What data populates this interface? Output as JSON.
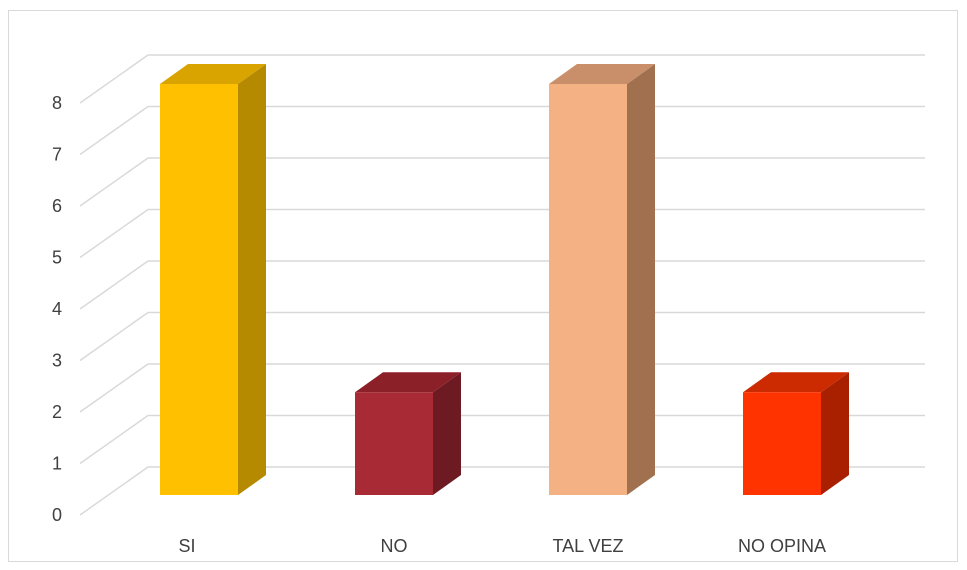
{
  "chart_data": {
    "type": "bar",
    "title": "",
    "xlabel": "",
    "ylabel": "",
    "categories": [
      "SI",
      "NO",
      "TAL VEZ",
      "NO OPINA"
    ],
    "values": [
      8,
      2,
      8,
      2
    ],
    "ylim": [
      0,
      8
    ],
    "yticks": [
      "0",
      "1",
      "2",
      "3",
      "4",
      "5",
      "6",
      "7",
      "8"
    ],
    "grid": true,
    "legend": "none",
    "colors": {
      "front": [
        "#FFC000",
        "#A82A35",
        "#F4B184",
        "#FF3300"
      ],
      "side": [
        "#B58A00",
        "#6E1A22",
        "#A0704F",
        "#A82000"
      ],
      "top": [
        "#D9A300",
        "#8C2029",
        "#C98F6B",
        "#CC2A00"
      ]
    },
    "gridline_color": "#d9d9d9"
  }
}
